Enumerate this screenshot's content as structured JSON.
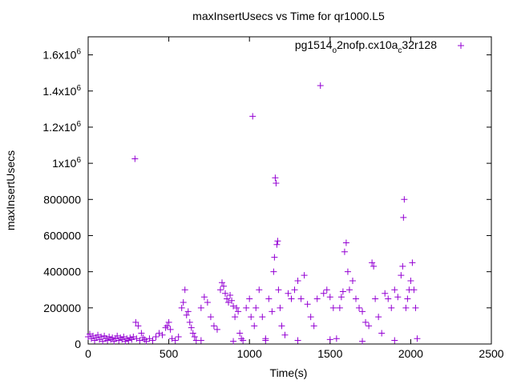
{
  "chart_data": {
    "type": "scatter",
    "title": "maxInsertUsecs vs Time for qr1000.L5",
    "xlabel": "Time(s)",
    "ylabel": "maxInsertUsecs",
    "xlim": [
      0,
      2500
    ],
    "ylim": [
      0,
      1700000
    ],
    "x_ticks": [
      {
        "value": 0,
        "label": "0"
      },
      {
        "value": 500,
        "label": "500"
      },
      {
        "value": 1000,
        "label": "1000"
      },
      {
        "value": 1500,
        "label": "1500"
      },
      {
        "value": 2000,
        "label": "2000"
      },
      {
        "value": 2500,
        "label": "2500"
      }
    ],
    "y_ticks": [
      {
        "value": 0,
        "label": "0"
      },
      {
        "value": 200000,
        "label": "200000"
      },
      {
        "value": 400000,
        "label": "400000"
      },
      {
        "value": 600000,
        "label": "600000"
      },
      {
        "value": 800000,
        "label": "800000"
      },
      {
        "value": 1000000,
        "base": "1x10",
        "exp": "6"
      },
      {
        "value": 1200000,
        "base": "1.2x10",
        "exp": "6"
      },
      {
        "value": 1400000,
        "base": "1.4x10",
        "exp": "6"
      },
      {
        "value": 1600000,
        "base": "1.6x10",
        "exp": "6"
      }
    ],
    "legend_position": "top-right",
    "series_color": "#9400d3",
    "legend_segments": [
      {
        "text": "pg1514",
        "sub": false
      },
      {
        "text": "o",
        "sub": true
      },
      {
        "text": "2nofp.cx10a",
        "sub": false
      },
      {
        "text": "c",
        "sub": true
      },
      {
        "text": "32r128",
        "sub": false
      }
    ],
    "series": [
      {
        "points": [
          [
            0,
            40000
          ],
          [
            10,
            55000
          ],
          [
            20,
            30000
          ],
          [
            30,
            45000
          ],
          [
            40,
            20000
          ],
          [
            50,
            35000
          ],
          [
            60,
            50000
          ],
          [
            70,
            25000
          ],
          [
            80,
            40000
          ],
          [
            90,
            15000
          ],
          [
            100,
            45000
          ],
          [
            110,
            30000
          ],
          [
            120,
            20000
          ],
          [
            130,
            40000
          ],
          [
            140,
            25000
          ],
          [
            150,
            35000
          ],
          [
            160,
            15000
          ],
          [
            170,
            30000
          ],
          [
            180,
            45000
          ],
          [
            190,
            20000
          ],
          [
            200,
            35000
          ],
          [
            210,
            25000
          ],
          [
            220,
            40000
          ],
          [
            230,
            15000
          ],
          [
            240,
            30000
          ],
          [
            250,
            20000
          ],
          [
            260,
            35000
          ],
          [
            270,
            25000
          ],
          [
            280,
            40000
          ],
          [
            290,
            1025000
          ],
          [
            295,
            120000
          ],
          [
            300,
            30000
          ],
          [
            310,
            100000
          ],
          [
            320,
            20000
          ],
          [
            330,
            60000
          ],
          [
            340,
            35000
          ],
          [
            350,
            25000
          ],
          [
            360,
            15000
          ],
          [
            380,
            30000
          ],
          [
            400,
            20000
          ],
          [
            420,
            40000
          ],
          [
            440,
            60000
          ],
          [
            460,
            50000
          ],
          [
            480,
            90000
          ],
          [
            490,
            100000
          ],
          [
            500,
            120000
          ],
          [
            510,
            80000
          ],
          [
            520,
            30000
          ],
          [
            540,
            20000
          ],
          [
            560,
            40000
          ],
          [
            580,
            200000
          ],
          [
            590,
            230000
          ],
          [
            600,
            300000
          ],
          [
            610,
            160000
          ],
          [
            620,
            180000
          ],
          [
            630,
            120000
          ],
          [
            640,
            90000
          ],
          [
            650,
            60000
          ],
          [
            660,
            40000
          ],
          [
            670,
            20000
          ],
          [
            700,
            200000
          ],
          [
            720,
            260000
          ],
          [
            740,
            230000
          ],
          [
            760,
            150000
          ],
          [
            780,
            100000
          ],
          [
            800,
            80000
          ],
          [
            820,
            300000
          ],
          [
            830,
            340000
          ],
          [
            840,
            320000
          ],
          [
            850,
            280000
          ],
          [
            860,
            250000
          ],
          [
            870,
            230000
          ],
          [
            880,
            270000
          ],
          [
            890,
            240000
          ],
          [
            900,
            210000
          ],
          [
            910,
            150000
          ],
          [
            920,
            200000
          ],
          [
            930,
            180000
          ],
          [
            940,
            60000
          ],
          [
            950,
            30000
          ],
          [
            960,
            20000
          ],
          [
            980,
            200000
          ],
          [
            1000,
            250000
          ],
          [
            1010,
            150000
          ],
          [
            1020,
            1260000
          ],
          [
            1030,
            100000
          ],
          [
            1040,
            200000
          ],
          [
            1060,
            300000
          ],
          [
            1080,
            150000
          ],
          [
            1100,
            20000
          ],
          [
            1120,
            250000
          ],
          [
            1140,
            180000
          ],
          [
            1150,
            400000
          ],
          [
            1155,
            480000
          ],
          [
            1160,
            920000
          ],
          [
            1165,
            890000
          ],
          [
            1170,
            550000
          ],
          [
            1175,
            570000
          ],
          [
            1180,
            300000
          ],
          [
            1190,
            200000
          ],
          [
            1200,
            100000
          ],
          [
            1220,
            50000
          ],
          [
            1240,
            280000
          ],
          [
            1260,
            250000
          ],
          [
            1280,
            300000
          ],
          [
            1300,
            350000
          ],
          [
            1320,
            250000
          ],
          [
            1340,
            380000
          ],
          [
            1360,
            220000
          ],
          [
            1380,
            150000
          ],
          [
            1400,
            100000
          ],
          [
            1420,
            250000
          ],
          [
            1440,
            1430000
          ],
          [
            1460,
            280000
          ],
          [
            1480,
            300000
          ],
          [
            1500,
            260000
          ],
          [
            1520,
            200000
          ],
          [
            1540,
            30000
          ],
          [
            1560,
            200000
          ],
          [
            1570,
            260000
          ],
          [
            1580,
            290000
          ],
          [
            1590,
            510000
          ],
          [
            1600,
            560000
          ],
          [
            1610,
            400000
          ],
          [
            1620,
            300000
          ],
          [
            1640,
            350000
          ],
          [
            1660,
            250000
          ],
          [
            1680,
            200000
          ],
          [
            1700,
            180000
          ],
          [
            1720,
            120000
          ],
          [
            1740,
            100000
          ],
          [
            1760,
            450000
          ],
          [
            1770,
            430000
          ],
          [
            1780,
            250000
          ],
          [
            1800,
            150000
          ],
          [
            1820,
            60000
          ],
          [
            1840,
            280000
          ],
          [
            1860,
            250000
          ],
          [
            1880,
            200000
          ],
          [
            1900,
            300000
          ],
          [
            1920,
            260000
          ],
          [
            1940,
            380000
          ],
          [
            1950,
            430000
          ],
          [
            1955,
            700000
          ],
          [
            1960,
            800000
          ],
          [
            1970,
            200000
          ],
          [
            1980,
            250000
          ],
          [
            1990,
            300000
          ],
          [
            2000,
            350000
          ],
          [
            2010,
            450000
          ],
          [
            2020,
            300000
          ],
          [
            2030,
            200000
          ],
          [
            2040,
            30000
          ],
          [
            700,
            20000
          ],
          [
            900,
            15000
          ],
          [
            1100,
            30000
          ],
          [
            1300,
            20000
          ],
          [
            1500,
            25000
          ],
          [
            1700,
            15000
          ],
          [
            1900,
            20000
          ]
        ]
      }
    ]
  }
}
